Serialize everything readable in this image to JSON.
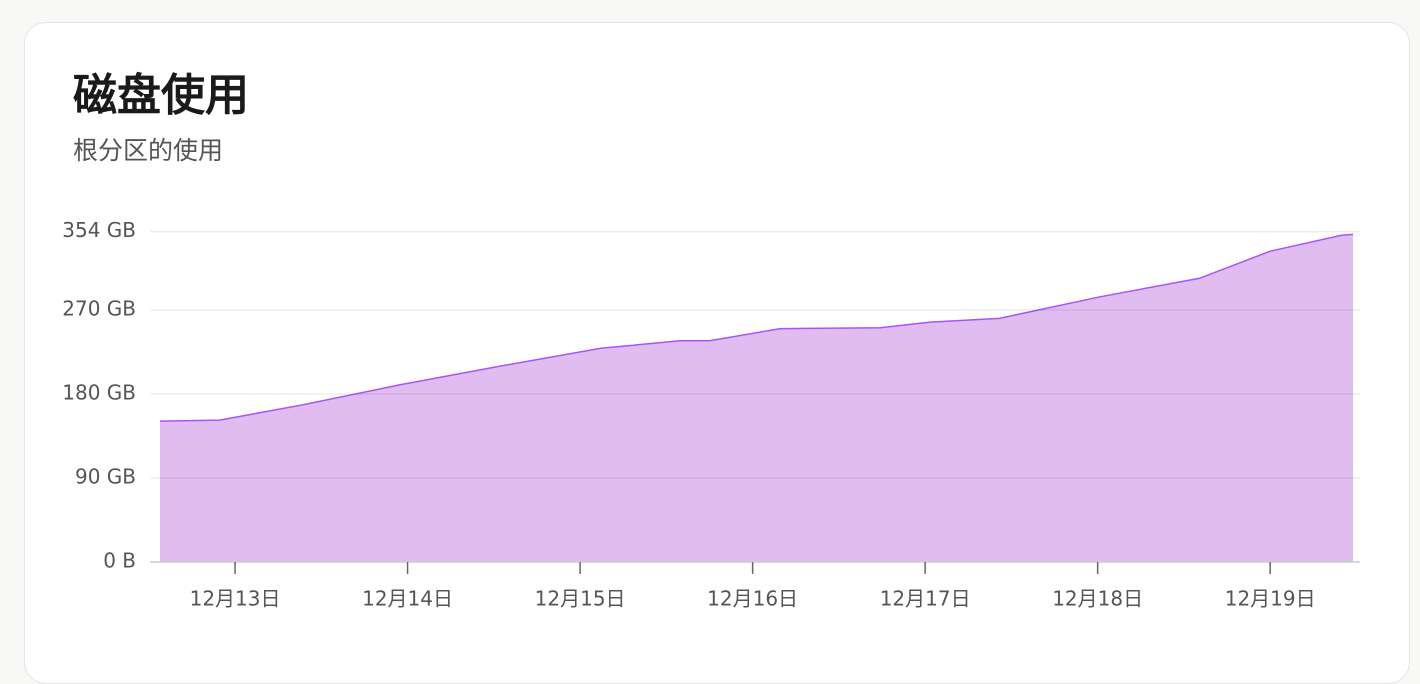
{
  "title": "磁盘使用",
  "subtitle": "根分区的使用",
  "chart_data": {
    "type": "area",
    "color": "#a855f7",
    "fill": "#e0bcf1",
    "grid": true,
    "x": [
      12.565,
      12.91,
      13.38,
      13.96,
      14.54,
      15.12,
      15.58,
      15.75,
      16.16,
      16.74,
      17.03,
      17.43,
      18.01,
      18.59,
      19.0,
      19.41,
      19.48
    ],
    "values": [
      151,
      152,
      168,
      190,
      210,
      229,
      237,
      237,
      250,
      251,
      257,
      261,
      284,
      304,
      333,
      350,
      351
    ],
    "xlim": [
      12.565,
      19.48
    ],
    "xticks": [
      {
        "value": 13,
        "label": "12月13日"
      },
      {
        "value": 14,
        "label": "12月14日"
      },
      {
        "value": 15,
        "label": "12月15日"
      },
      {
        "value": 16,
        "label": "12月16日"
      },
      {
        "value": 17,
        "label": "12月17日"
      },
      {
        "value": 18,
        "label": "12月18日"
      },
      {
        "value": 19,
        "label": "12月19日"
      }
    ],
    "ylim": [
      0,
      354
    ],
    "yticks": [
      {
        "value": 0,
        "label": "0 B"
      },
      {
        "value": 90,
        "label": "90 GB"
      },
      {
        "value": 180,
        "label": "180 GB"
      },
      {
        "value": 270,
        "label": "270 GB"
      },
      {
        "value": 354,
        "label": "354 GB"
      }
    ]
  }
}
